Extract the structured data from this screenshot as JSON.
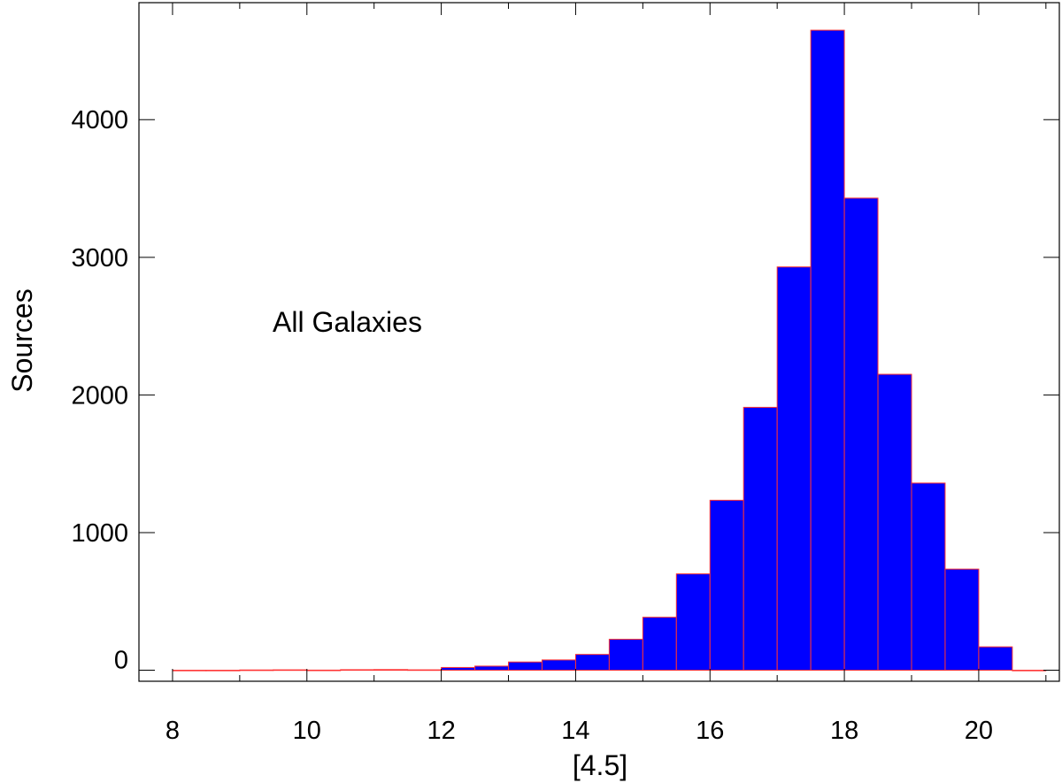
{
  "chart_data": {
    "type": "bar",
    "subtype": "histogram",
    "xlabel": "[4.5]",
    "ylabel": "Sources",
    "annotation": "All Galaxies",
    "xlim": [
      7.5,
      21.2
    ],
    "ylim": [
      -80,
      4850
    ],
    "bin_width": 0.5,
    "x_ticks": [
      8,
      10,
      12,
      14,
      16,
      18,
      20
    ],
    "y_ticks": [
      0,
      1000,
      2000,
      3000,
      4000
    ],
    "bins": [
      {
        "x0": 8.0,
        "value": 0
      },
      {
        "x0": 8.5,
        "value": 0
      },
      {
        "x0": 9.0,
        "value": 2
      },
      {
        "x0": 9.5,
        "value": 3
      },
      {
        "x0": 10.0,
        "value": 1
      },
      {
        "x0": 10.5,
        "value": 4
      },
      {
        "x0": 11.0,
        "value": 5
      },
      {
        "x0": 11.5,
        "value": 3
      },
      {
        "x0": 12.0,
        "value": 20
      },
      {
        "x0": 12.5,
        "value": 30
      },
      {
        "x0": 13.0,
        "value": 60
      },
      {
        "x0": 13.5,
        "value": 75
      },
      {
        "x0": 14.0,
        "value": 115
      },
      {
        "x0": 14.5,
        "value": 225
      },
      {
        "x0": 15.0,
        "value": 385
      },
      {
        "x0": 15.5,
        "value": 700
      },
      {
        "x0": 16.0,
        "value": 1235
      },
      {
        "x0": 16.5,
        "value": 1910
      },
      {
        "x0": 17.0,
        "value": 2930
      },
      {
        "x0": 17.5,
        "value": 4650
      },
      {
        "x0": 18.0,
        "value": 3430
      },
      {
        "x0": 18.5,
        "value": 2150
      },
      {
        "x0": 19.0,
        "value": 1360
      },
      {
        "x0": 19.5,
        "value": 735
      },
      {
        "x0": 20.0,
        "value": 170
      },
      {
        "x0": 20.5,
        "value": 0
      }
    ],
    "colors": {
      "bar_fill": "#0000ff",
      "bar_edge": "#ff3333",
      "axis": "#000000"
    },
    "grid": false,
    "legend": "none"
  }
}
